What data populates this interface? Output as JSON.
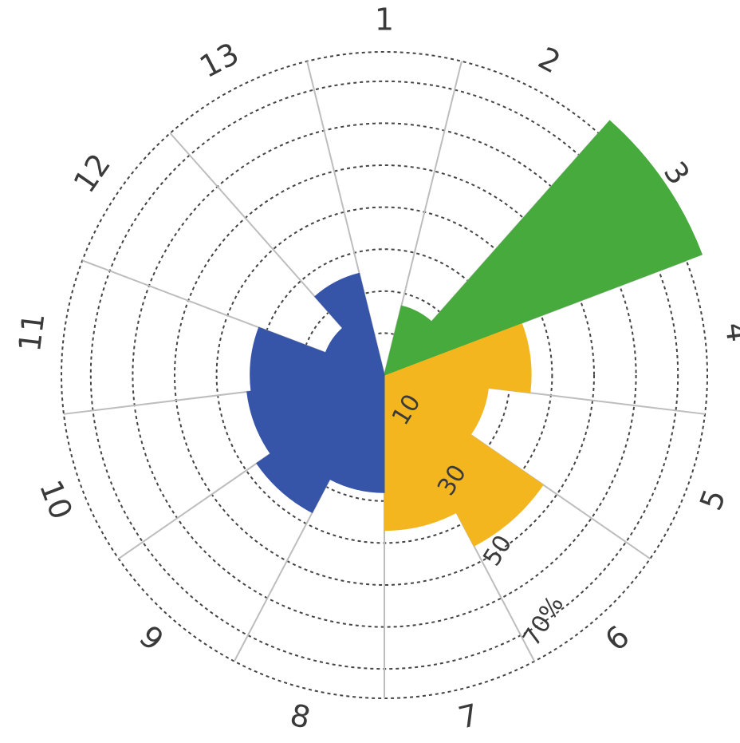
{
  "chart_data": {
    "type": "polar-bar",
    "categories": [
      "1",
      "2",
      "3",
      "4",
      "5",
      "6",
      "7",
      "8",
      "9",
      "10",
      "11",
      "12",
      "13"
    ],
    "series": [
      {
        "color": "#F3B61F",
        "values": {
          "4": 35,
          "5": 25,
          "6": 46,
          "7": 37
        }
      },
      {
        "color": "#46AA3C",
        "values": {
          "2": 17,
          "3": 81
        }
      },
      {
        "color": "#3654A8",
        "values": {
          "8": 28,
          "9": 37,
          "10": 33,
          "11": 32,
          "12": 15,
          "13": 25
        }
      }
    ],
    "radial_ticks": [
      "10",
      "30",
      "50",
      "70%"
    ],
    "radial_max": 77,
    "grid": true
  }
}
